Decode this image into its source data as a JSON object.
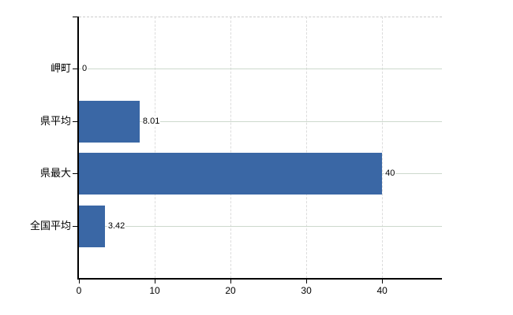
{
  "chart_data": {
    "type": "bar",
    "orientation": "horizontal",
    "title": "",
    "xlabel": "",
    "ylabel": "",
    "categories": [
      "岬町",
      "県平均",
      "県最大",
      "全国平均"
    ],
    "values": [
      0,
      8.01,
      40,
      3.42
    ],
    "value_labels": [
      "0",
      "8.01",
      "40",
      "3.42"
    ],
    "x_ticks": [
      0,
      10,
      20,
      30,
      40
    ],
    "x_tick_labels": [
      "0",
      "10",
      "20",
      "30",
      "40"
    ],
    "xlim": [
      0,
      47.9
    ],
    "legend": "none",
    "grid": {
      "vertical_gridlines": "dashed",
      "horizontal_gridlines": "solid",
      "top_border": "dashed",
      "right_border": "none"
    },
    "colors": {
      "bar": "#3a67a5",
      "text": "#000000",
      "axis": "#000000",
      "horizontal_gridline": "#cdd9cd",
      "vertical_gridline": "#dcdcdc",
      "top_border": "#cccccc",
      "background": "#ffffff"
    }
  }
}
